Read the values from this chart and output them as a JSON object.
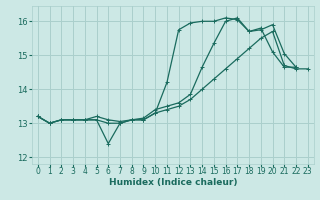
{
  "xlabel": "Humidex (Indice chaleur)",
  "ylabel": "",
  "bg_color": "#cce8e5",
  "line_color": "#1a6b5e",
  "grid_color": "#aacfcc",
  "xlim": [
    -0.5,
    23.5
  ],
  "ylim": [
    11.8,
    16.45
  ],
  "xticks": [
    0,
    1,
    2,
    3,
    4,
    5,
    6,
    7,
    8,
    9,
    10,
    11,
    12,
    13,
    14,
    15,
    16,
    17,
    18,
    19,
    20,
    21,
    22,
    23
  ],
  "yticks": [
    12,
    13,
    14,
    15,
    16
  ],
  "line1_x": [
    0,
    1,
    2,
    3,
    4,
    5,
    6,
    7,
    8,
    9,
    10,
    11,
    12,
    13,
    14,
    15,
    16,
    17,
    18,
    19,
    20,
    21,
    22,
    23
  ],
  "line1_y": [
    13.2,
    13.0,
    13.1,
    13.1,
    13.1,
    13.1,
    13.0,
    13.0,
    13.1,
    13.1,
    13.3,
    13.4,
    13.5,
    13.7,
    14.0,
    14.3,
    14.6,
    14.9,
    15.2,
    15.5,
    15.7,
    14.7,
    14.6,
    14.6
  ],
  "line2_x": [
    0,
    1,
    2,
    3,
    4,
    5,
    6,
    7,
    8,
    9,
    10,
    11,
    12,
    13,
    14,
    15,
    16,
    17,
    18,
    19,
    20,
    21,
    22,
    23
  ],
  "line2_y": [
    13.2,
    13.0,
    13.1,
    13.1,
    13.1,
    13.1,
    12.4,
    13.0,
    13.1,
    13.1,
    13.3,
    14.2,
    15.75,
    15.95,
    16.0,
    16.0,
    16.1,
    16.05,
    15.7,
    15.8,
    15.1,
    14.65,
    14.65,
    null
  ],
  "line3_x": [
    0,
    1,
    2,
    3,
    4,
    5,
    6,
    7,
    8,
    9,
    10,
    11,
    12,
    13,
    14,
    15,
    16,
    17,
    18,
    19,
    20,
    21,
    22,
    23
  ],
  "line3_y": [
    13.2,
    13.0,
    13.1,
    13.1,
    13.1,
    13.2,
    13.1,
    13.05,
    13.1,
    13.15,
    13.4,
    13.5,
    13.6,
    13.85,
    14.65,
    15.35,
    16.0,
    16.1,
    15.7,
    15.75,
    15.9,
    15.05,
    14.65,
    null
  ]
}
